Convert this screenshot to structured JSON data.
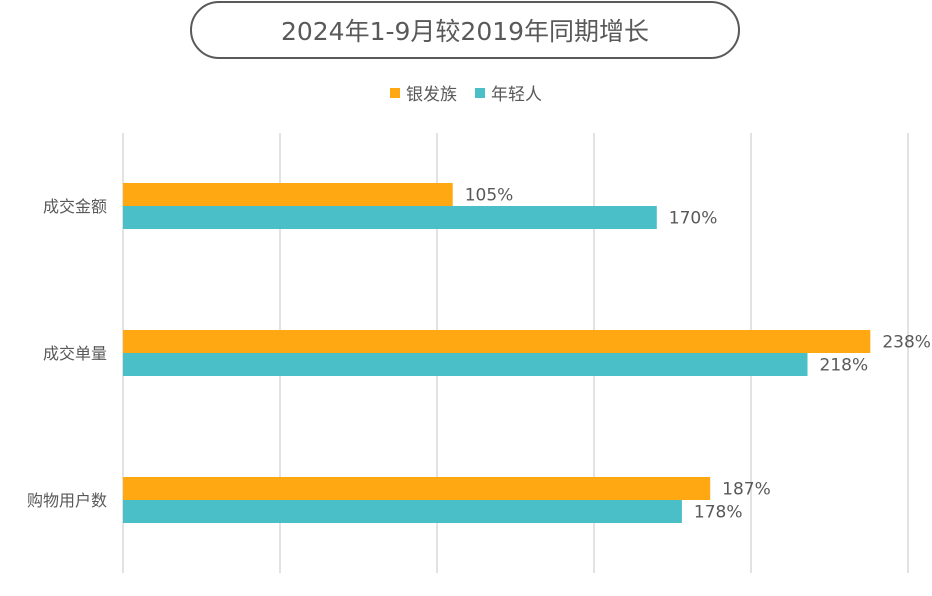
{
  "chart_data": {
    "type": "bar",
    "orientation": "horizontal",
    "title": "2024年1-9月较2019年同期增长",
    "categories": [
      "成交金额",
      "成交单量",
      "购物用户数"
    ],
    "series": [
      {
        "name": "银发族",
        "values": [
          105,
          238,
          187
        ],
        "labels": [
          "105%",
          "238%",
          "187%"
        ],
        "color": "#FFA812"
      },
      {
        "name": "年轻人",
        "values": [
          170,
          218,
          178
        ],
        "labels": [
          "170%",
          "218%",
          "178%"
        ],
        "color": "#4BBFC8"
      }
    ],
    "xlim": [
      0,
      250
    ],
    "grid": true,
    "legend": "top-center",
    "xlabel": "",
    "ylabel": ""
  }
}
